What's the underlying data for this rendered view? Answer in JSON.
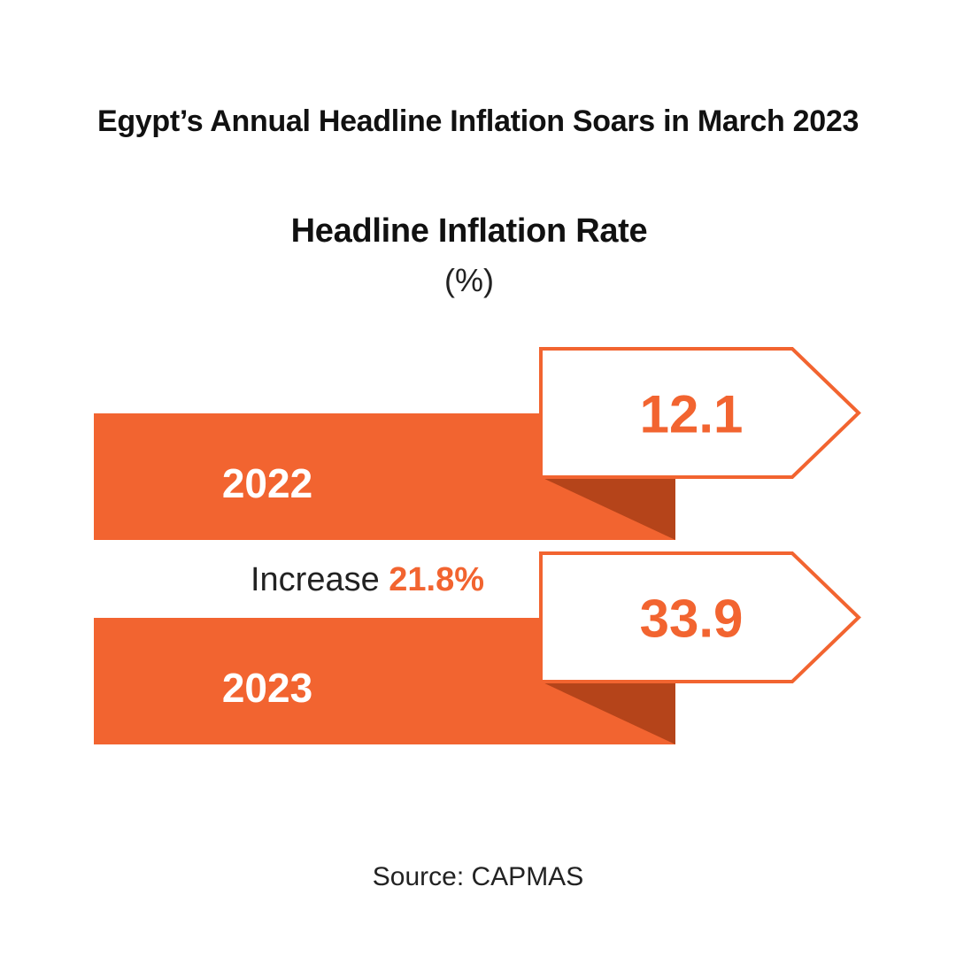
{
  "title": "Egypt’s Annual Headline Inflation Soars in March 2023",
  "subtitle": "Headline Inflation Rate",
  "unit": "(%)",
  "increase": {
    "label": "Increase",
    "value": "21.8%"
  },
  "source": "Source: CAPMAS",
  "colors": {
    "accent": "#f26430",
    "shadow": "#b5441a",
    "text": "#111111"
  },
  "chart_data": {
    "type": "bar",
    "title": "Headline Inflation Rate",
    "ylabel": "(%)",
    "categories": [
      "2022",
      "2023"
    ],
    "values": [
      12.1,
      33.9
    ],
    "value_labels": [
      "12.1",
      "33.9"
    ]
  }
}
